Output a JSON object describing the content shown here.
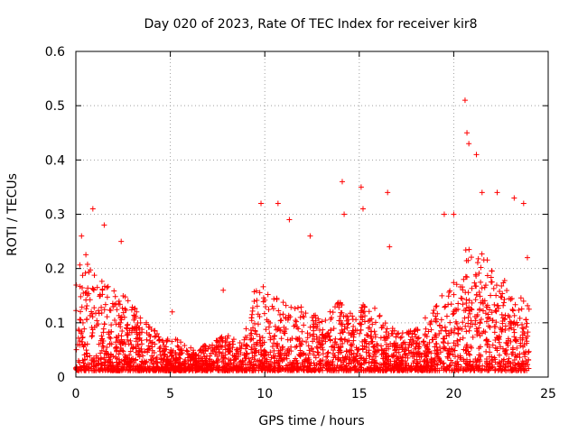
{
  "chart_data": {
    "type": "scatter",
    "title": "Day 020 of 2023, Rate Of TEC Index for receiver kir8",
    "xlabel": "GPS time / hours",
    "ylabel": "ROTI / TECUs",
    "xlim": [
      0,
      25
    ],
    "ylim": [
      0,
      0.6
    ],
    "xticks": [
      0,
      5,
      10,
      15,
      20,
      25
    ],
    "yticks": [
      0,
      0.1,
      0.2,
      0.3,
      0.4,
      0.5,
      0.6
    ],
    "xtick_labels": [
      "0",
      "5",
      "10",
      "15",
      "20",
      "25"
    ],
    "ytick_labels": [
      "0",
      "0.1",
      "0.2",
      "0.3",
      "0.4",
      "0.5",
      "0.6"
    ],
    "grid": true,
    "marker": "plus",
    "color": "#ff0000",
    "series": [
      {
        "x_range": [
          0,
          24
        ],
        "notable_points": [
          {
            "x": 0.3,
            "y": 0.26
          },
          {
            "x": 0.9,
            "y": 0.31
          },
          {
            "x": 1.5,
            "y": 0.28
          },
          {
            "x": 2.4,
            "y": 0.25
          },
          {
            "x": 5.1,
            "y": 0.12
          },
          {
            "x": 7.8,
            "y": 0.16
          },
          {
            "x": 9.8,
            "y": 0.32
          },
          {
            "x": 10.7,
            "y": 0.32
          },
          {
            "x": 11.3,
            "y": 0.29
          },
          {
            "x": 12.4,
            "y": 0.26
          },
          {
            "x": 14.1,
            "y": 0.36
          },
          {
            "x": 14.2,
            "y": 0.3
          },
          {
            "x": 15.1,
            "y": 0.35
          },
          {
            "x": 15.2,
            "y": 0.31
          },
          {
            "x": 16.5,
            "y": 0.34
          },
          {
            "x": 16.6,
            "y": 0.24
          },
          {
            "x": 19.5,
            "y": 0.3
          },
          {
            "x": 20.0,
            "y": 0.3
          },
          {
            "x": 20.6,
            "y": 0.51
          },
          {
            "x": 20.7,
            "y": 0.45
          },
          {
            "x": 20.8,
            "y": 0.43
          },
          {
            "x": 21.2,
            "y": 0.41
          },
          {
            "x": 21.5,
            "y": 0.34
          },
          {
            "x": 22.3,
            "y": 0.34
          },
          {
            "x": 23.2,
            "y": 0.33
          },
          {
            "x": 23.7,
            "y": 0.32
          },
          {
            "x": 23.9,
            "y": 0.22
          }
        ]
      }
    ]
  }
}
